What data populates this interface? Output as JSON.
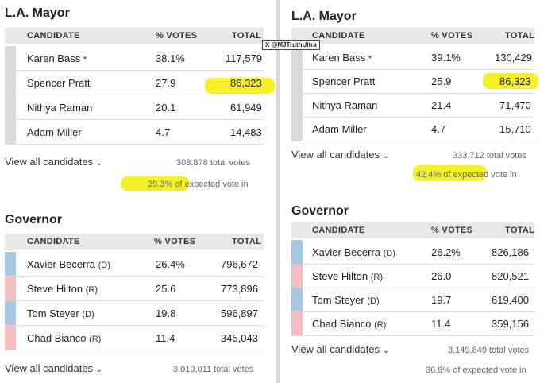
{
  "watermark": {
    "handle": "@MJTruthUltra",
    "x_icon": "X"
  },
  "left": {
    "mayor": {
      "title": "L.A. Mayor",
      "headers": {
        "candidate": "CANDIDATE",
        "pct": "% VOTES",
        "total": "TOTAL"
      },
      "rows": [
        {
          "name": "Karen Bass",
          "star": "*",
          "pct": "38.1%",
          "total": "117,579"
        },
        {
          "name": "Spencer Pratt",
          "star": "",
          "pct": "27.9",
          "total": "86,323"
        },
        {
          "name": "Nithya Raman",
          "star": "",
          "pct": "20.1",
          "total": "61,949"
        },
        {
          "name": "Adam Miller",
          "star": "",
          "pct": "4.7",
          "total": "14,483"
        }
      ],
      "view_all": "View all candidates",
      "total_votes": "308,878 total votes",
      "expected_pct": "39.3%",
      "expected_text": "of expected vote in"
    },
    "governor": {
      "title": "Governor",
      "headers": {
        "candidate": "CANDIDATE",
        "pct": "% VOTES",
        "total": "TOTAL"
      },
      "rows": [
        {
          "name": "Xavier Becerra",
          "party": "(D)",
          "pct": "26.4%",
          "total": "796,672"
        },
        {
          "name": "Steve Hilton",
          "party": "(R)",
          "pct": "25.6",
          "total": "773,896"
        },
        {
          "name": "Tom Steyer",
          "party": "(D)",
          "pct": "19.8",
          "total": "596,897"
        },
        {
          "name": "Chad Bianco",
          "party": "(R)",
          "pct": "11.4",
          "total": "345,043"
        }
      ],
      "view_all": "View all candidates",
      "total_votes": "3,019,011 total votes"
    }
  },
  "right": {
    "mayor": {
      "title": "L.A. Mayor",
      "headers": {
        "candidate": "CANDIDATE",
        "pct": "% VOTES",
        "total": "TOTAL"
      },
      "rows": [
        {
          "name": "Karen Bass",
          "star": "*",
          "pct": "39.1%",
          "total": "130,429"
        },
        {
          "name": "Spencer Pratt",
          "star": "",
          "pct": "25.9",
          "total": "86,323"
        },
        {
          "name": "Nithya Raman",
          "star": "",
          "pct": "21.4",
          "total": "71,470"
        },
        {
          "name": "Adam Miller",
          "star": "",
          "pct": "4.7",
          "total": "15,710"
        }
      ],
      "view_all": "View all candidates",
      "total_votes": "333,712 total votes",
      "expected_pct": "42.4%",
      "expected_text": "of expected vote in"
    },
    "governor": {
      "title": "Governor",
      "headers": {
        "candidate": "CANDIDATE",
        "pct": "% VOTES",
        "total": "TOTAL"
      },
      "rows": [
        {
          "name": "Xavier Becerra",
          "party": "(D)",
          "pct": "26.2%",
          "total": "826,186"
        },
        {
          "name": "Steve Hilton",
          "party": "(R)",
          "pct": "26.0",
          "total": "820,521"
        },
        {
          "name": "Tom Steyer",
          "party": "(D)",
          "pct": "19.7",
          "total": "619,400"
        },
        {
          "name": "Chad Bianco",
          "party": "(R)",
          "pct": "11.4",
          "total": "359,156"
        }
      ],
      "view_all": "View all candidates",
      "total_votes": "3,149,849 total votes",
      "expected_text_full": "36.9% of expected vote in"
    }
  },
  "colors": {
    "dem": "#a9c6e0",
    "rep": "#f2bcc0",
    "neutral": "#d9d9d9",
    "highlight": "#f3f020"
  }
}
